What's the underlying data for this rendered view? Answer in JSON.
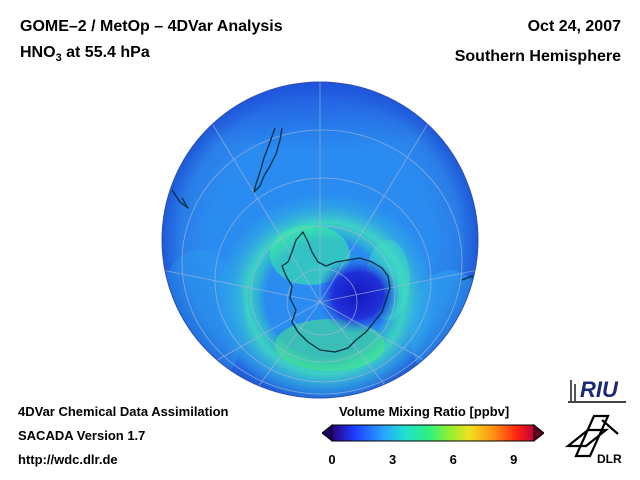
{
  "header": {
    "title_line1": "GOME–2 / MetOp – 4DVar Analysis",
    "title_line2_prefix": "HNO",
    "title_line2_sub": "3",
    "title_line2_suffix": " at 55.4 hPa",
    "date": "Oct 24, 2007",
    "region": "Southern Hemisphere"
  },
  "footer": {
    "line1": "4DVar Chemical Data Assimilation",
    "line2": "SACADA Version 1.7",
    "line3": "http://wdc.dlr.de"
  },
  "colorbar": {
    "title": "Volume Mixing Ratio [ppbv]",
    "min": 0,
    "max": 10,
    "ticks": [
      "0",
      "3",
      "6",
      "9"
    ],
    "tick_values": [
      0,
      3,
      6,
      9
    ],
    "colors": [
      "#2a0080",
      "#1e3cff",
      "#28a0ff",
      "#20e0d0",
      "#30f080",
      "#90f030",
      "#f0e020",
      "#ff9010",
      "#ff2010",
      "#c00040"
    ]
  },
  "logos": {
    "riu": "RIU",
    "dlr": "DLR"
  },
  "map": {
    "projection": "orthographic",
    "center": "South Pole",
    "colors": {
      "background_field": "#1a78e8",
      "outer_ring": "#2c9cf0",
      "high_values": "#2ef0a0",
      "vortex_core": "#1a1ec8",
      "coastline": "#003040",
      "graticule": "#a8b8d8"
    }
  }
}
